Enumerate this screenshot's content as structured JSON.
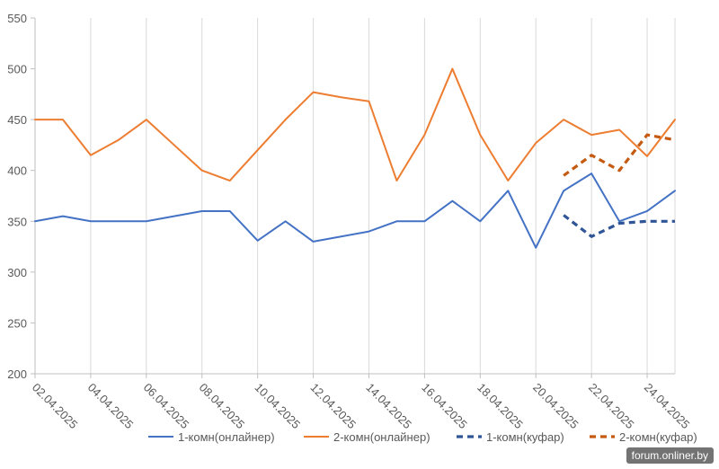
{
  "chart_data": {
    "type": "line",
    "title": "",
    "xlabel": "",
    "ylabel": "",
    "ylim": [
      200,
      550
    ],
    "yticks": [
      200,
      250,
      300,
      350,
      400,
      450,
      500,
      550
    ],
    "grid": "vertical",
    "legend_position": "bottom",
    "x": [
      "02.04.2025",
      "03.04.2025",
      "04.04.2025",
      "05.04.2025",
      "06.04.2025",
      "07.04.2025",
      "08.04.2025",
      "09.04.2025",
      "10.04.2025",
      "11.04.2025",
      "12.04.2025",
      "13.04.2025",
      "14.04.2025",
      "15.04.2025",
      "16.04.2025",
      "17.04.2025",
      "18.04.2025",
      "19.04.2025",
      "20.04.2025",
      "21.04.2025",
      "22.04.2025",
      "23.04.2025",
      "24.04.2025",
      "25.04.2025"
    ],
    "x_tick_labels": [
      "02.04.2025",
      "04.04.2025",
      "06.04.2025",
      "08.04.2025",
      "10.04.2025",
      "12.04.2025",
      "14.04.2025",
      "16.04.2025",
      "18.04.2025",
      "20.04.2025",
      "22.04.2025",
      "24.04.2025"
    ],
    "series": [
      {
        "name": "1-комн(онлайнер)",
        "color": "#4472C4",
        "dash": "solid",
        "values": [
          350,
          355,
          350,
          350,
          350,
          355,
          360,
          360,
          331,
          350,
          330,
          335,
          340,
          350,
          350,
          370,
          350,
          380,
          324,
          380,
          397,
          350,
          360,
          380
        ]
      },
      {
        "name": "2-комн(онлайнер)",
        "color": "#ED7D31",
        "dash": "solid",
        "values": [
          450,
          450,
          415,
          430,
          450,
          425,
          400,
          390,
          420,
          450,
          477,
          472,
          468,
          390,
          435,
          500,
          435,
          390,
          427,
          450,
          435,
          440,
          414,
          450
        ]
      },
      {
        "name": "1-комн(куфар)",
        "color": "#2F5597",
        "dash": "dashed",
        "values": [
          null,
          null,
          null,
          null,
          null,
          null,
          null,
          null,
          null,
          null,
          null,
          null,
          null,
          null,
          null,
          null,
          null,
          null,
          null,
          356,
          335,
          348,
          350,
          350
        ]
      },
      {
        "name": "2-комн(куфар)",
        "color": "#C55A11",
        "dash": "dashed",
        "values": [
          null,
          null,
          null,
          null,
          null,
          null,
          null,
          null,
          null,
          null,
          null,
          null,
          null,
          null,
          null,
          null,
          null,
          null,
          null,
          395,
          415,
          400,
          435,
          430
        ]
      }
    ]
  },
  "watermark": "forum.onliner.by"
}
